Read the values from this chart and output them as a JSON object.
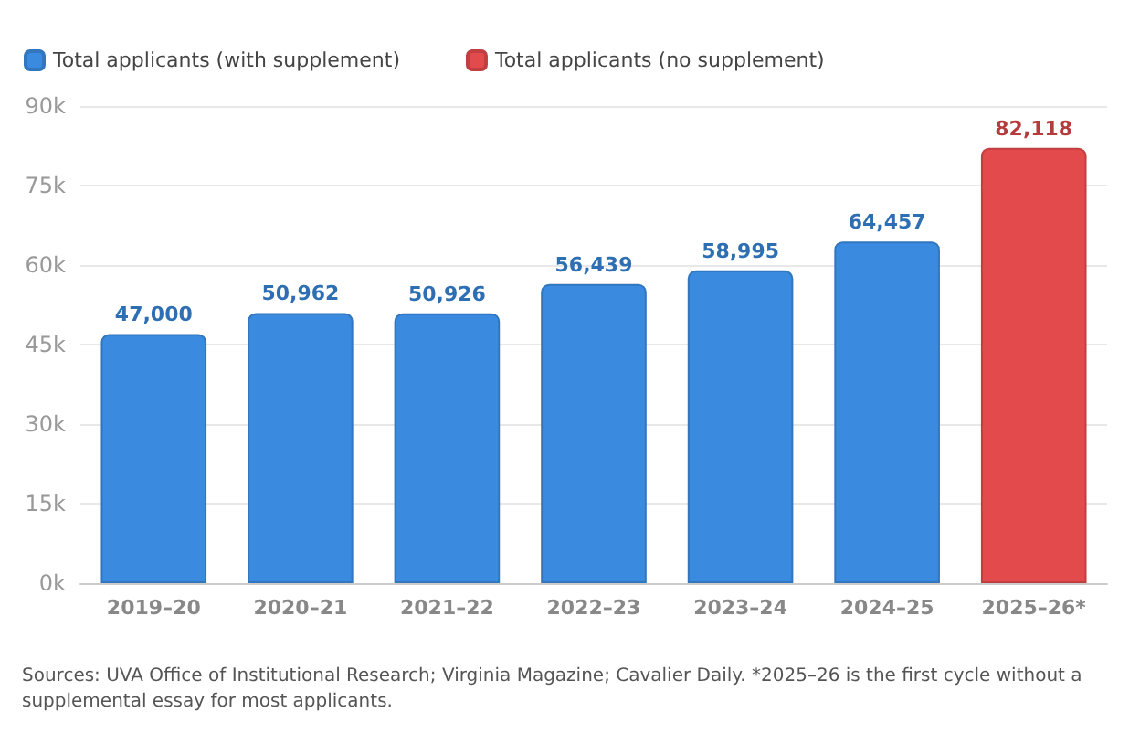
{
  "chart_data": {
    "type": "bar",
    "categories": [
      "2019–20",
      "2020–21",
      "2021–22",
      "2022–23",
      "2023–24",
      "2024–25",
      "2025–26*"
    ],
    "series": [
      {
        "name": "Total applicants (with supplement)",
        "color": "#3a8be0",
        "values": [
          47000,
          50962,
          50926,
          56439,
          58995,
          64457,
          null
        ],
        "value_labels": [
          "47,000",
          "50,962",
          "50,926",
          "56,439",
          "58,995",
          "64,457",
          null
        ]
      },
      {
        "name": "Total applicants (no supplement)",
        "color": "#e34a4b",
        "values": [
          null,
          null,
          null,
          null,
          null,
          null,
          82118
        ],
        "value_labels": [
          null,
          null,
          null,
          null,
          null,
          null,
          "82,118"
        ]
      }
    ],
    "stacked": true,
    "legend": "top left",
    "grid": "y",
    "ylim": [
      0,
      90000
    ],
    "yticks": [
      {
        "value": 0,
        "label": "0k"
      },
      {
        "value": 15000,
        "label": "15k"
      },
      {
        "value": 30000,
        "label": "30k"
      },
      {
        "value": 45000,
        "label": "45k"
      },
      {
        "value": 60000,
        "label": "60k"
      },
      {
        "value": 75000,
        "label": "75k"
      },
      {
        "value": 90000,
        "label": "90k"
      }
    ],
    "annotations": [
      "Sources: UVA Office of Institutional Research; Virginia Magazine; Cavalier Daily. *2025–26 is the first cycle without a supplemental essay for most applicants."
    ]
  }
}
